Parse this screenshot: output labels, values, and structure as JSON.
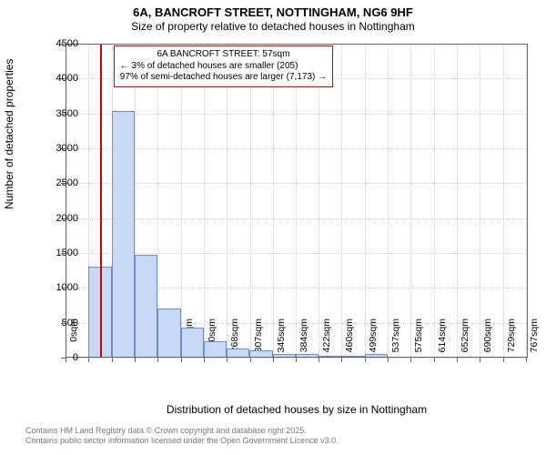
{
  "title": {
    "line1": "6A, BANCROFT STREET, NOTTINGHAM, NG6 9HF",
    "line2": "Size of property relative to detached houses in Nottingham"
  },
  "axes": {
    "xlabel": "Distribution of detached houses by size in Nottingham",
    "ylabel": "Number of detached properties",
    "ylim": [
      0,
      4500
    ],
    "yticks": [
      0,
      500,
      1000,
      1500,
      2000,
      2500,
      3000,
      3500,
      4000,
      4500
    ],
    "xticks_labels": [
      "0sqm",
      "38sqm",
      "77sqm",
      "115sqm",
      "153sqm",
      "192sqm",
      "230sqm",
      "268sqm",
      "307sqm",
      "345sqm",
      "384sqm",
      "422sqm",
      "460sqm",
      "499sqm",
      "537sqm",
      "575sqm",
      "614sqm",
      "652sqm",
      "690sqm",
      "729sqm",
      "767sqm"
    ],
    "xticks_values": [
      0,
      38,
      77,
      115,
      153,
      192,
      230,
      268,
      307,
      345,
      384,
      422,
      460,
      499,
      537,
      575,
      614,
      652,
      690,
      729,
      767
    ],
    "xlim": [
      0,
      770
    ]
  },
  "style": {
    "bar_fill": "#c7d9f4",
    "bar_border": "#6f8ec9",
    "grid_color": "#cccccc",
    "axis_color": "#666666",
    "background": "#ffffff",
    "marker_line_color": "#cc0000",
    "annotation_border": "#cc0000",
    "title_fontsize_pt": 13,
    "label_fontsize_pt": 12,
    "tick_fontsize_pt": 11,
    "xtick_fontsize_pt": 10.5,
    "annotation_fontsize_pt": 10,
    "footer_fontsize_pt": 9,
    "footer_color": "#777777"
  },
  "histogram": {
    "type": "histogram",
    "bin_width_sqm": 38.35,
    "bins_left_edge": [
      38.35,
      76.7,
      115.05,
      153.4,
      191.75,
      230.1,
      268.45,
      306.8,
      345.15,
      383.5,
      421.85,
      460.2,
      498.55
    ],
    "counts": [
      1300,
      3530,
      1480,
      700,
      430,
      230,
      130,
      100,
      55,
      50,
      30,
      10,
      55
    ]
  },
  "marker": {
    "value_sqm": 57,
    "annotation_lines": [
      "6A BANCROFT STREET: 57sqm",
      "← 3% of detached houses are smaller (205)",
      "97% of semi-detached houses are larger (7,173) →"
    ],
    "annotation_box": {
      "left_sqm": 80,
      "top_count": 4470
    }
  },
  "footer": {
    "line1": "Contains HM Land Registry data © Crown copyright and database right 2025.",
    "line2": "Contains public sector information licensed under the Open Government Licence v3.0."
  }
}
